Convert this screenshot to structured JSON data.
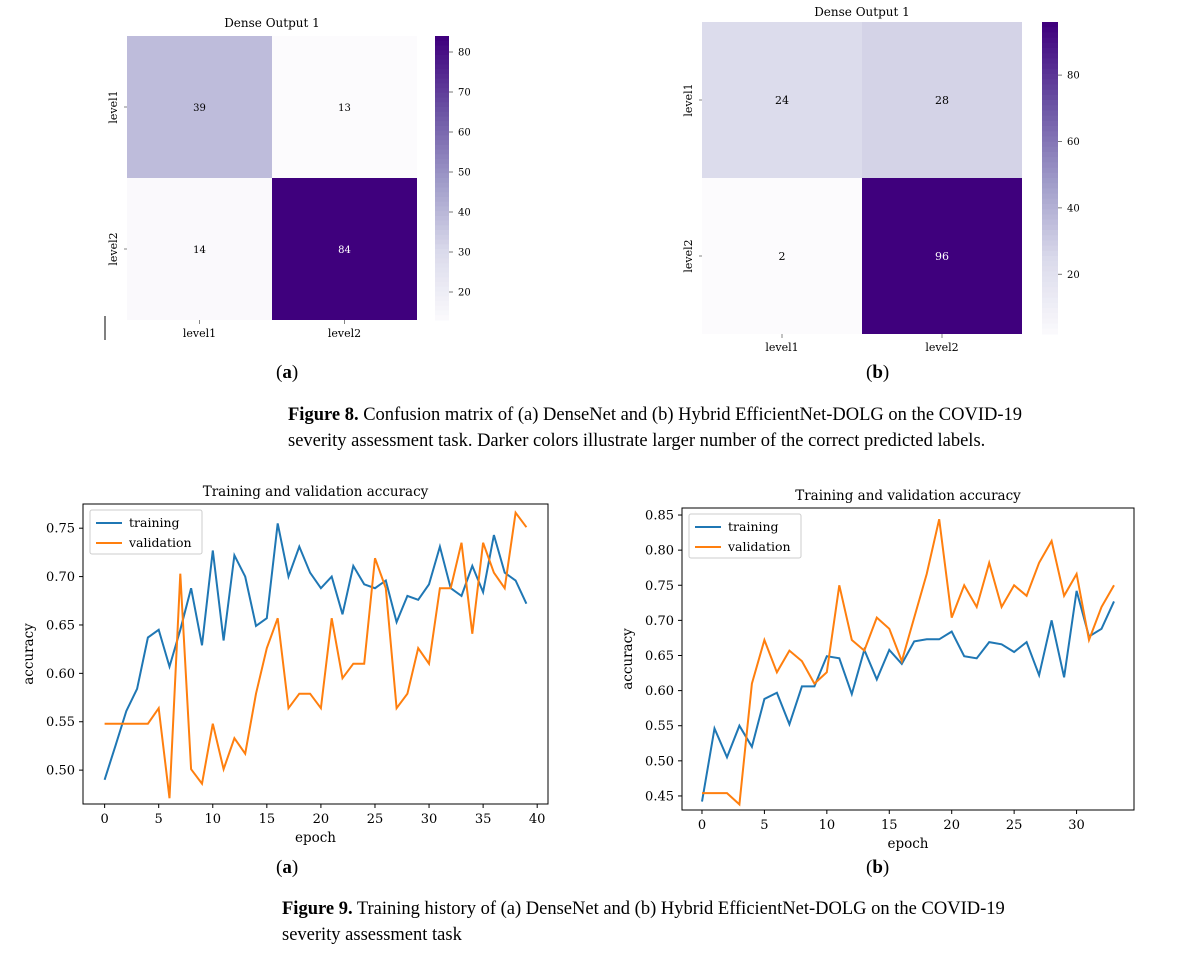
{
  "colors": {
    "heat_low": "#fcfbfd",
    "heat_high": "#3f007d",
    "training": "#1f77b4",
    "validation": "#ff7f0e"
  },
  "figure8": {
    "caption_label": "Figure 8.",
    "caption_text": " Confusion matrix of (a) DenseNet and (b) Hybrid EfficientNet-DOLG on the COVID-19 severity assessment task. Darker colors illustrate larger number of the correct predicted labels.",
    "caption_line1": "Confusion matrix of (a) DenseNet and (b) Hybrid EfficientNet-DOLG on the COVID-19",
    "caption_line2": "severity assessment task. Darker colors illustrate larger number of the correct predicted labels.",
    "sub_a": "a",
    "sub_b": "b"
  },
  "figure9": {
    "caption_label": "Figure 9.",
    "caption_line1": "Training history of (a) DenseNet and (b) Hybrid EfficientNet-DOLG on the COVID-19",
    "caption_line2": "severity assessment task",
    "sub_a": "a",
    "sub_b": "b"
  },
  "chart_data": [
    {
      "type": "heatmap",
      "title": "Dense Output 1",
      "row_labels": [
        "level1",
        "level2"
      ],
      "col_labels": [
        "level1",
        "level2"
      ],
      "values": [
        [
          39,
          13
        ],
        [
          14,
          84
        ]
      ],
      "colorbar": {
        "min": 13,
        "max": 84,
        "ticks": [
          20,
          30,
          40,
          50,
          60,
          70,
          80
        ]
      }
    },
    {
      "type": "heatmap",
      "title": "Dense Output 1",
      "row_labels": [
        "level1",
        "level2"
      ],
      "col_labels": [
        "level1",
        "level2"
      ],
      "values": [
        [
          24,
          28
        ],
        [
          2,
          96
        ]
      ],
      "colorbar": {
        "min": 2,
        "max": 96,
        "ticks": [
          20,
          40,
          60,
          80
        ]
      }
    },
    {
      "type": "line",
      "title": "Training and validation accuracy",
      "xlabel": "epoch",
      "ylabel": "accuracy",
      "xlim": [
        -2,
        41
      ],
      "ylim": [
        0.465,
        0.775
      ],
      "xticks": [
        0,
        5,
        10,
        15,
        20,
        25,
        30,
        35,
        40
      ],
      "yticks": [
        0.5,
        0.55,
        0.6,
        0.65,
        0.7,
        0.75
      ],
      "legend": "top-left",
      "series": [
        {
          "name": "training",
          "values": [
            0.49,
            0.525,
            0.561,
            0.584,
            0.637,
            0.645,
            0.607,
            0.645,
            0.688,
            0.629,
            0.727,
            0.634,
            0.722,
            0.7,
            0.649,
            0.657,
            0.755,
            0.7,
            0.731,
            0.704,
            0.688,
            0.7,
            0.661,
            0.711,
            0.692,
            0.688,
            0.696,
            0.653,
            0.68,
            0.676,
            0.692,
            0.731,
            0.688,
            0.68,
            0.711,
            0.684,
            0.743,
            0.704,
            0.696,
            0.672
          ]
        },
        {
          "name": "validation",
          "values": [
            0.548,
            0.548,
            0.548,
            0.548,
            0.548,
            0.564,
            0.471,
            0.703,
            0.501,
            0.486,
            0.548,
            0.501,
            0.533,
            0.517,
            0.579,
            0.626,
            0.657,
            0.564,
            0.579,
            0.579,
            0.564,
            0.657,
            0.595,
            0.61,
            0.61,
            0.719,
            0.688,
            0.564,
            0.579,
            0.626,
            0.61,
            0.688,
            0.688,
            0.735,
            0.641,
            0.735,
            0.704,
            0.688,
            0.766,
            0.751
          ]
        }
      ]
    },
    {
      "type": "line",
      "title": "Training and validation accuracy",
      "xlabel": "epoch",
      "ylabel": "accuracy",
      "xlim": [
        -1.6,
        34.6
      ],
      "ylim": [
        0.43,
        0.86
      ],
      "xticks": [
        0,
        5,
        10,
        15,
        20,
        25,
        30
      ],
      "yticks": [
        0.45,
        0.5,
        0.55,
        0.6,
        0.65,
        0.7,
        0.75,
        0.8,
        0.85
      ],
      "legend": "top-left",
      "series": [
        {
          "name": "training",
          "values": [
            0.442,
            0.546,
            0.505,
            0.55,
            0.52,
            0.588,
            0.597,
            0.552,
            0.606,
            0.606,
            0.649,
            0.646,
            0.595,
            0.658,
            0.616,
            0.658,
            0.638,
            0.67,
            0.673,
            0.673,
            0.684,
            0.649,
            0.646,
            0.669,
            0.666,
            0.655,
            0.669,
            0.622,
            0.7,
            0.619,
            0.742,
            0.677,
            0.688,
            0.727
          ]
        },
        {
          "name": "validation",
          "values": [
            0.454,
            0.454,
            0.454,
            0.438,
            0.61,
            0.672,
            0.626,
            0.657,
            0.642,
            0.61,
            0.626,
            0.75,
            0.672,
            0.657,
            0.704,
            0.688,
            0.642,
            0.704,
            0.766,
            0.844,
            0.704,
            0.75,
            0.719,
            0.782,
            0.719,
            0.75,
            0.735,
            0.782,
            0.813,
            0.735,
            0.766,
            0.672,
            0.719,
            0.75
          ]
        }
      ]
    }
  ]
}
